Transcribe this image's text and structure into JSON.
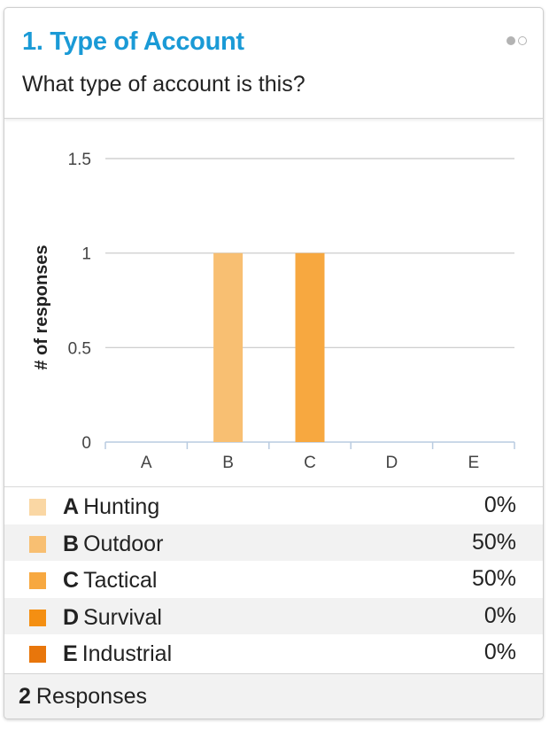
{
  "question": {
    "title": "1. Type of Account",
    "subtitle": "What type of account is this?"
  },
  "chart_data": {
    "type": "bar",
    "categories": [
      "A",
      "B",
      "C",
      "D",
      "E"
    ],
    "values": [
      0,
      1,
      1,
      0,
      0
    ],
    "ylabel": "# of responses",
    "ylim": [
      0,
      1.5
    ],
    "yticks": [
      "0",
      "0.5",
      "1",
      "1.5"
    ],
    "grid": true,
    "colors": [
      "#fad7a4",
      "#f8bf72",
      "#f7a840",
      "#f48f12",
      "#e8760b"
    ]
  },
  "legend": [
    {
      "letter": "A",
      "label": "Hunting",
      "percent": "0%",
      "color": "#fad7a4"
    },
    {
      "letter": "B",
      "label": "Outdoor",
      "percent": "50%",
      "color": "#f8bf72"
    },
    {
      "letter": "C",
      "label": "Tactical",
      "percent": "50%",
      "color": "#f7a840"
    },
    {
      "letter": "D",
      "label": "Survival",
      "percent": "0%",
      "color": "#f48f12"
    },
    {
      "letter": "E",
      "label": "Industrial",
      "percent": "0%",
      "color": "#e8760b"
    }
  ],
  "footer": {
    "count": "2",
    "label": "Responses"
  }
}
